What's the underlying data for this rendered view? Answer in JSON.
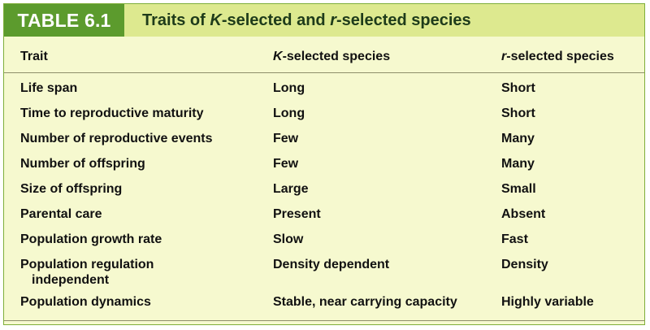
{
  "table": {
    "number": "TABLE 6.1",
    "title_parts": [
      "Traits of ",
      "K",
      "-selected and ",
      "r",
      "-selected species"
    ],
    "headers": {
      "trait": "Trait",
      "k_italic": "K",
      "k_rest": "-selected species",
      "r_italic": "r",
      "r_rest": "-selected species"
    },
    "rows": [
      {
        "trait": "Life span",
        "k": "Long",
        "r": "Short"
      },
      {
        "trait": "Time to reproductive maturity",
        "k": "Long",
        "r": "Short"
      },
      {
        "trait": "Number of reproductive events",
        "k": "Few",
        "r": "Many"
      },
      {
        "trait": "Number of offspring",
        "k": "Few",
        "r": "Many"
      },
      {
        "trait": "Size of offspring",
        "k": "Large",
        "r": "Small"
      },
      {
        "trait": "Parental care",
        "k": "Present",
        "r": "Absent"
      },
      {
        "trait": "Population growth rate",
        "k": "Slow",
        "r": "Fast"
      },
      {
        "trait": "Population regulation",
        "trait_line2": "independent",
        "k": "Density dependent",
        "r": "Density"
      },
      {
        "trait": "Population dynamics",
        "k": "Stable, near carrying capacity",
        "r": "Highly variable"
      }
    ]
  },
  "colors": {
    "background": "#f6f9cf",
    "header_band": "#dde98f",
    "number_box": "#5c9b2d",
    "title_text": "#1e3b1a",
    "border": "#7fae3a"
  }
}
